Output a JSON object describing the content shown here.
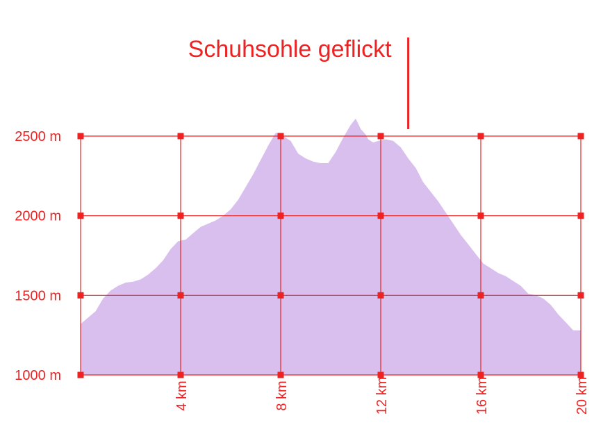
{
  "colors": {
    "accent": "#ee2222",
    "area": "#d9bfee"
  },
  "chart_data": {
    "type": "area",
    "x_unit": "km",
    "y_unit": "m",
    "xlim": [
      0,
      20
    ],
    "ylim": [
      1000,
      2500
    ],
    "x_ticks": [
      4,
      8,
      12,
      16,
      20
    ],
    "x_tick_labels": [
      "4 km",
      "8 km",
      "12 km",
      "16 km",
      "20 km"
    ],
    "y_ticks": [
      1000,
      1500,
      2000,
      2500
    ],
    "y_tick_labels": [
      "1000 m",
      "1500 m",
      "2000 m",
      "2500 m"
    ],
    "grid": true,
    "annotations": [
      {
        "text": "Schuhsohle geflickt",
        "x": 13.1
      }
    ],
    "x": [
      0,
      0.3,
      0.6,
      0.9,
      1.2,
      1.5,
      1.8,
      2.1,
      2.4,
      2.7,
      3.0,
      3.3,
      3.6,
      3.9,
      4.2,
      4.5,
      4.8,
      5.1,
      5.4,
      5.7,
      6.0,
      6.3,
      6.6,
      6.9,
      7.2,
      7.5,
      7.8,
      7.95,
      8.1,
      8.4,
      8.7,
      9.0,
      9.3,
      9.6,
      9.9,
      10.2,
      10.5,
      10.8,
      11.0,
      11.2,
      11.4,
      11.5,
      11.7,
      11.9,
      12.2,
      12.5,
      12.8,
      13.1,
      13.4,
      13.7,
      14.0,
      14.3,
      14.6,
      14.9,
      15.2,
      15.5,
      15.8,
      16.1,
      16.4,
      16.7,
      17.0,
      17.3,
      17.6,
      17.9,
      18.2,
      18.5,
      18.8,
      19.1,
      19.4,
      19.7,
      20.0
    ],
    "y": [
      1320,
      1360,
      1400,
      1480,
      1530,
      1560,
      1580,
      1585,
      1600,
      1630,
      1670,
      1720,
      1790,
      1840,
      1850,
      1890,
      1930,
      1950,
      1970,
      2000,
      2040,
      2100,
      2180,
      2260,
      2350,
      2440,
      2520,
      2520,
      2500,
      2470,
      2390,
      2360,
      2340,
      2330,
      2330,
      2400,
      2490,
      2570,
      2610,
      2545,
      2510,
      2480,
      2460,
      2470,
      2480,
      2470,
      2430,
      2360,
      2300,
      2210,
      2150,
      2090,
      2020,
      1950,
      1880,
      1820,
      1760,
      1700,
      1670,
      1640,
      1620,
      1590,
      1560,
      1510,
      1500,
      1480,
      1440,
      1380,
      1330,
      1280,
      1280
    ]
  }
}
